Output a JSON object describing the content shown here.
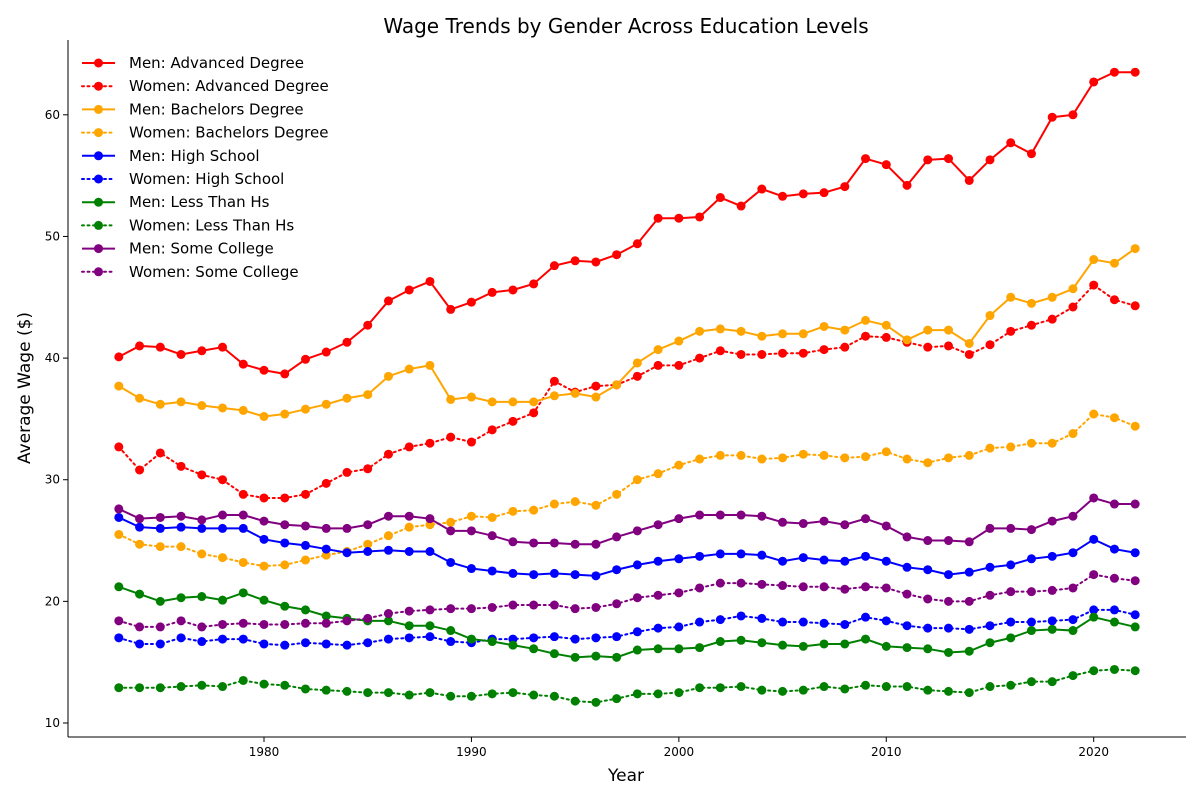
{
  "chart_data": {
    "type": "line",
    "title": "Wage Trends by Gender Across Education Levels",
    "xlabel": "Year",
    "ylabel": "Average Wage ($)",
    "xlim": [
      1970.55,
      2024.45
    ],
    "ylim": [
      8.85,
      66.15
    ],
    "xticks": [
      1980,
      1990,
      2000,
      2010,
      2020
    ],
    "yticks": [
      10,
      20,
      30,
      40,
      50,
      60
    ],
    "grid": false,
    "legend_position": "top-left",
    "x": [
      1973,
      1974,
      1975,
      1976,
      1977,
      1978,
      1979,
      1980,
      1981,
      1982,
      1983,
      1984,
      1985,
      1986,
      1987,
      1988,
      1989,
      1990,
      1991,
      1992,
      1993,
      1994,
      1995,
      1996,
      1997,
      1998,
      1999,
      2000,
      2001,
      2002,
      2003,
      2004,
      2005,
      2006,
      2007,
      2008,
      2009,
      2010,
      2011,
      2012,
      2013,
      2014,
      2015,
      2016,
      2017,
      2018,
      2019,
      2020,
      2021,
      2022
    ],
    "series": [
      {
        "name": "Men: Advanced Degree",
        "color": "#ff0000",
        "style": "solid",
        "values": [
          40.1,
          41.0,
          40.9,
          40.3,
          40.6,
          40.9,
          39.5,
          39.0,
          38.7,
          39.9,
          40.5,
          41.3,
          42.7,
          44.7,
          45.6,
          46.3,
          44.0,
          44.6,
          45.4,
          45.6,
          46.1,
          47.6,
          48.0,
          47.9,
          48.5,
          49.4,
          51.5,
          51.5,
          51.6,
          53.2,
          52.5,
          53.9,
          53.3,
          53.5,
          53.6,
          54.1,
          56.4,
          55.9,
          54.2,
          56.3,
          56.4,
          54.6,
          56.3,
          57.7,
          56.8,
          59.8,
          60.0,
          62.7,
          63.5,
          63.5
        ]
      },
      {
        "name": "Women: Advanced Degree",
        "color": "#ff0000",
        "style": "dotted",
        "values": [
          32.7,
          30.8,
          32.2,
          31.1,
          30.4,
          30.0,
          28.8,
          28.5,
          28.5,
          28.8,
          29.7,
          30.6,
          30.9,
          32.1,
          32.7,
          33.0,
          33.5,
          33.1,
          34.1,
          34.8,
          35.5,
          38.1,
          37.2,
          37.7,
          37.8,
          38.5,
          39.4,
          39.4,
          40.0,
          40.6,
          40.3,
          40.3,
          40.4,
          40.4,
          40.7,
          40.9,
          41.8,
          41.7,
          41.3,
          40.9,
          41.0,
          40.3,
          41.1,
          42.2,
          42.7,
          43.2,
          44.2,
          46.0,
          44.8,
          44.3
        ]
      },
      {
        "name": "Men: Bachelors Degree",
        "color": "#ffa500",
        "style": "solid",
        "values": [
          37.7,
          36.7,
          36.2,
          36.4,
          36.1,
          35.9,
          35.7,
          35.2,
          35.4,
          35.8,
          36.2,
          36.7,
          37.0,
          38.5,
          39.1,
          39.4,
          36.6,
          36.8,
          36.4,
          36.4,
          36.4,
          36.9,
          37.1,
          36.8,
          37.8,
          39.6,
          40.7,
          41.4,
          42.2,
          42.4,
          42.2,
          41.8,
          42.0,
          42.0,
          42.6,
          42.3,
          43.1,
          42.7,
          41.5,
          42.3,
          42.3,
          41.2,
          43.5,
          45.0,
          44.5,
          45.0,
          45.7,
          48.1,
          47.8,
          49.0
        ]
      },
      {
        "name": "Women: Bachelors Degree",
        "color": "#ffa500",
        "style": "dotted",
        "values": [
          25.5,
          24.7,
          24.5,
          24.5,
          23.9,
          23.6,
          23.2,
          22.9,
          23.0,
          23.4,
          23.8,
          24.1,
          24.7,
          25.4,
          26.1,
          26.3,
          26.5,
          27.0,
          26.9,
          27.4,
          27.5,
          28.0,
          28.2,
          27.9,
          28.8,
          30.0,
          30.5,
          31.2,
          31.7,
          32.0,
          32.0,
          31.7,
          31.8,
          32.1,
          32.0,
          31.8,
          31.9,
          32.3,
          31.7,
          31.4,
          31.8,
          32.0,
          32.6,
          32.7,
          33.0,
          33.0,
          33.8,
          35.4,
          35.1,
          34.4
        ]
      },
      {
        "name": "Men: High School",
        "color": "#0000ff",
        "style": "solid",
        "values": [
          26.9,
          26.1,
          26.0,
          26.1,
          26.0,
          26.0,
          26.0,
          25.1,
          24.8,
          24.6,
          24.3,
          24.0,
          24.1,
          24.2,
          24.1,
          24.1,
          23.2,
          22.7,
          22.5,
          22.3,
          22.2,
          22.3,
          22.2,
          22.1,
          22.6,
          23.0,
          23.3,
          23.5,
          23.7,
          23.9,
          23.9,
          23.8,
          23.3,
          23.6,
          23.4,
          23.3,
          23.7,
          23.3,
          22.8,
          22.6,
          22.2,
          22.4,
          22.8,
          23.0,
          23.5,
          23.7,
          24.0,
          25.1,
          24.3,
          24.0
        ]
      },
      {
        "name": "Women: High School",
        "color": "#0000ff",
        "style": "dotted",
        "values": [
          17.0,
          16.5,
          16.5,
          17.0,
          16.7,
          16.9,
          16.9,
          16.5,
          16.4,
          16.6,
          16.5,
          16.4,
          16.6,
          16.9,
          17.0,
          17.1,
          16.7,
          16.6,
          16.9,
          16.9,
          17.0,
          17.1,
          16.9,
          17.0,
          17.1,
          17.5,
          17.8,
          17.9,
          18.3,
          18.5,
          18.8,
          18.6,
          18.3,
          18.3,
          18.2,
          18.1,
          18.7,
          18.4,
          18.0,
          17.8,
          17.8,
          17.7,
          18.0,
          18.3,
          18.3,
          18.4,
          18.5,
          19.3,
          19.3,
          18.9
        ]
      },
      {
        "name": "Men: Less Than Hs",
        "color": "#008000",
        "style": "solid",
        "values": [
          21.2,
          20.6,
          20.0,
          20.3,
          20.4,
          20.1,
          20.7,
          20.1,
          19.6,
          19.3,
          18.8,
          18.6,
          18.4,
          18.4,
          18.0,
          18.0,
          17.6,
          16.9,
          16.7,
          16.4,
          16.1,
          15.7,
          15.4,
          15.5,
          15.4,
          16.0,
          16.1,
          16.1,
          16.2,
          16.7,
          16.8,
          16.6,
          16.4,
          16.3,
          16.5,
          16.5,
          16.9,
          16.3,
          16.2,
          16.1,
          15.8,
          15.9,
          16.6,
          17.0,
          17.6,
          17.7,
          17.6,
          18.7,
          18.3,
          17.9
        ]
      },
      {
        "name": "Women: Less Than Hs",
        "color": "#008000",
        "style": "dotted",
        "values": [
          12.9,
          12.9,
          12.9,
          13.0,
          13.1,
          13.0,
          13.5,
          13.2,
          13.1,
          12.8,
          12.7,
          12.6,
          12.5,
          12.5,
          12.3,
          12.5,
          12.2,
          12.2,
          12.4,
          12.5,
          12.3,
          12.2,
          11.8,
          11.7,
          12.0,
          12.4,
          12.4,
          12.5,
          12.9,
          12.9,
          13.0,
          12.7,
          12.6,
          12.7,
          13.0,
          12.8,
          13.1,
          13.0,
          13.0,
          12.7,
          12.6,
          12.5,
          13.0,
          13.1,
          13.4,
          13.4,
          13.9,
          14.3,
          14.4,
          14.3
        ]
      },
      {
        "name": "Men: Some College",
        "color": "#800080",
        "style": "solid",
        "values": [
          27.6,
          26.8,
          26.9,
          27.0,
          26.7,
          27.1,
          27.1,
          26.6,
          26.3,
          26.2,
          26.0,
          26.0,
          26.3,
          27.0,
          27.0,
          26.8,
          25.8,
          25.8,
          25.4,
          24.9,
          24.8,
          24.8,
          24.7,
          24.7,
          25.3,
          25.8,
          26.3,
          26.8,
          27.1,
          27.1,
          27.1,
          27.0,
          26.5,
          26.4,
          26.6,
          26.3,
          26.8,
          26.2,
          25.3,
          25.0,
          25.0,
          24.9,
          26.0,
          26.0,
          25.9,
          26.6,
          27.0,
          28.5,
          28.0,
          28.0
        ]
      },
      {
        "name": "Women: Some College",
        "color": "#800080",
        "style": "dotted",
        "values": [
          18.4,
          17.9,
          17.9,
          18.4,
          17.9,
          18.1,
          18.2,
          18.1,
          18.1,
          18.2,
          18.2,
          18.4,
          18.6,
          19.0,
          19.2,
          19.3,
          19.4,
          19.4,
          19.5,
          19.7,
          19.7,
          19.7,
          19.4,
          19.5,
          19.8,
          20.3,
          20.5,
          20.7,
          21.1,
          21.5,
          21.5,
          21.4,
          21.3,
          21.2,
          21.2,
          21.0,
          21.2,
          21.1,
          20.6,
          20.2,
          20.0,
          20.0,
          20.5,
          20.8,
          20.8,
          20.9,
          21.1,
          22.2,
          21.9,
          21.7
        ]
      }
    ]
  }
}
